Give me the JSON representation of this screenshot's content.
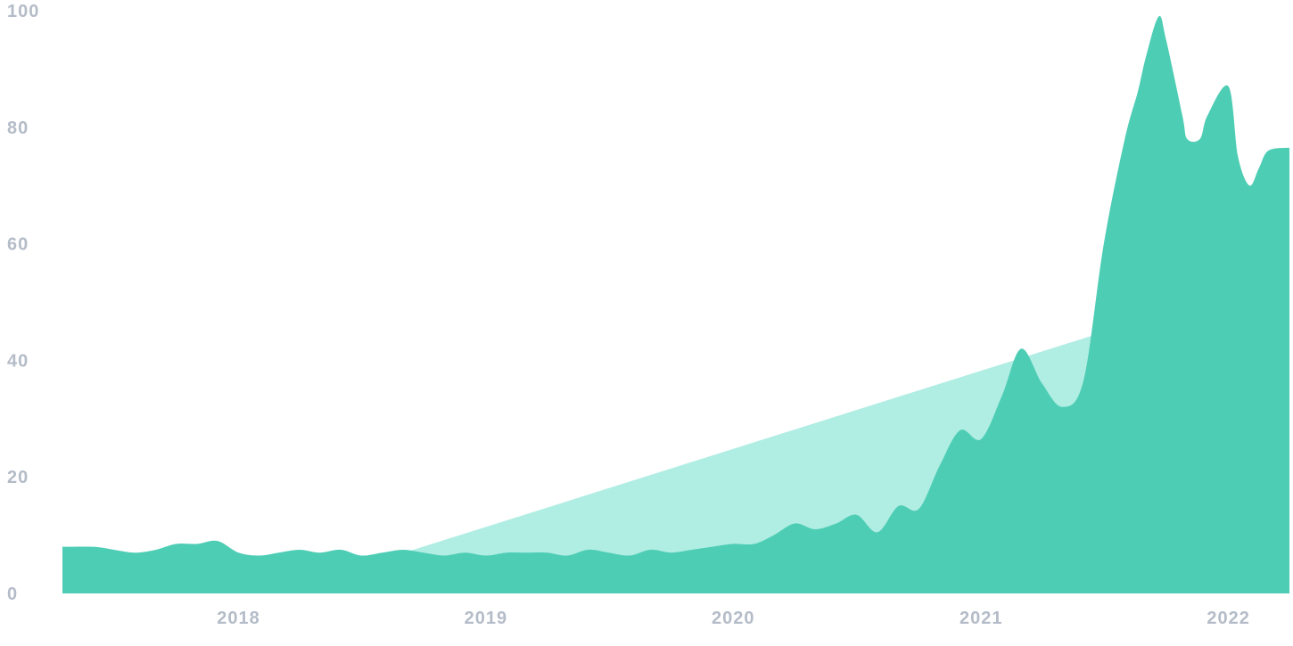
{
  "colors": {
    "trend_fill": "#b0ede3",
    "area_fill": "#4ecdb5",
    "tick_text": "#b4bcc8",
    "background": "#ffffff"
  },
  "chart_data": {
    "type": "area",
    "title": "",
    "xlabel": "",
    "ylabel": "",
    "ylim": [
      0,
      100
    ],
    "xlim": [
      "2017-04-16",
      "2022-04-01"
    ],
    "grid": false,
    "legend": "none",
    "y_ticks": [
      "0",
      "20",
      "40",
      "60",
      "80",
      "100"
    ],
    "x_ticks": [
      {
        "label": "2018",
        "date": "2018-01-01"
      },
      {
        "label": "2019",
        "date": "2019-01-01"
      },
      {
        "label": "2020",
        "date": "2020-01-01"
      },
      {
        "label": "2021",
        "date": "2021-01-01"
      },
      {
        "label": "2022",
        "date": "2022-01-01"
      }
    ],
    "series": [
      {
        "role": "interest",
        "x": [
          "2017-04-16",
          "2017-06-01",
          "2017-07-01",
          "2017-08-01",
          "2017-09-01",
          "2017-10-01",
          "2017-11-01",
          "2017-12-01",
          "2018-01-01",
          "2018-02-01",
          "2018-03-01",
          "2018-04-01",
          "2018-05-01",
          "2018-06-01",
          "2018-07-01",
          "2018-08-01",
          "2018-09-01",
          "2018-10-01",
          "2018-11-01",
          "2018-12-01",
          "2019-01-01",
          "2019-02-01",
          "2019-03-01",
          "2019-04-01",
          "2019-05-01",
          "2019-06-01",
          "2019-07-01",
          "2019-08-01",
          "2019-09-01",
          "2019-10-01",
          "2019-11-01",
          "2019-12-01",
          "2020-01-01",
          "2020-02-01",
          "2020-03-01",
          "2020-04-01",
          "2020-05-01",
          "2020-06-01",
          "2020-07-01",
          "2020-08-01",
          "2020-09-01",
          "2020-10-01",
          "2020-11-01",
          "2020-12-01",
          "2021-01-01",
          "2021-02-01",
          "2021-03-01",
          "2021-04-01",
          "2021-05-01",
          "2021-06-01",
          "2021-07-01",
          "2021-08-01",
          "2021-08-20",
          "2021-09-01",
          "2021-09-20",
          "2021-10-01",
          "2021-10-25",
          "2021-11-01",
          "2021-11-20",
          "2021-12-01",
          "2022-01-01",
          "2022-01-15",
          "2022-02-01",
          "2022-02-15",
          "2022-03-01",
          "2022-04-01"
        ],
        "y": [
          8,
          8,
          7.5,
          7,
          7.5,
          8.5,
          8.5,
          9,
          7,
          6.5,
          7,
          7.5,
          7,
          7.5,
          6.5,
          7,
          7.5,
          7,
          6.5,
          7,
          6.5,
          7,
          7,
          7,
          6.5,
          7.5,
          7,
          6.5,
          7.5,
          7,
          7.5,
          8,
          8.5,
          8.5,
          10,
          12,
          11,
          12,
          13.5,
          10.5,
          15,
          14.5,
          22,
          28,
          26.5,
          34,
          42,
          36,
          32,
          36.5,
          60,
          78,
          86,
          92,
          99,
          95,
          82,
          78,
          78,
          82,
          87,
          75,
          70,
          73,
          76,
          76.5
        ]
      },
      {
        "role": "trend",
        "x": [
          "2018-08-20",
          "2021-08-01"
        ],
        "y": [
          6.5,
          46
        ]
      }
    ]
  }
}
